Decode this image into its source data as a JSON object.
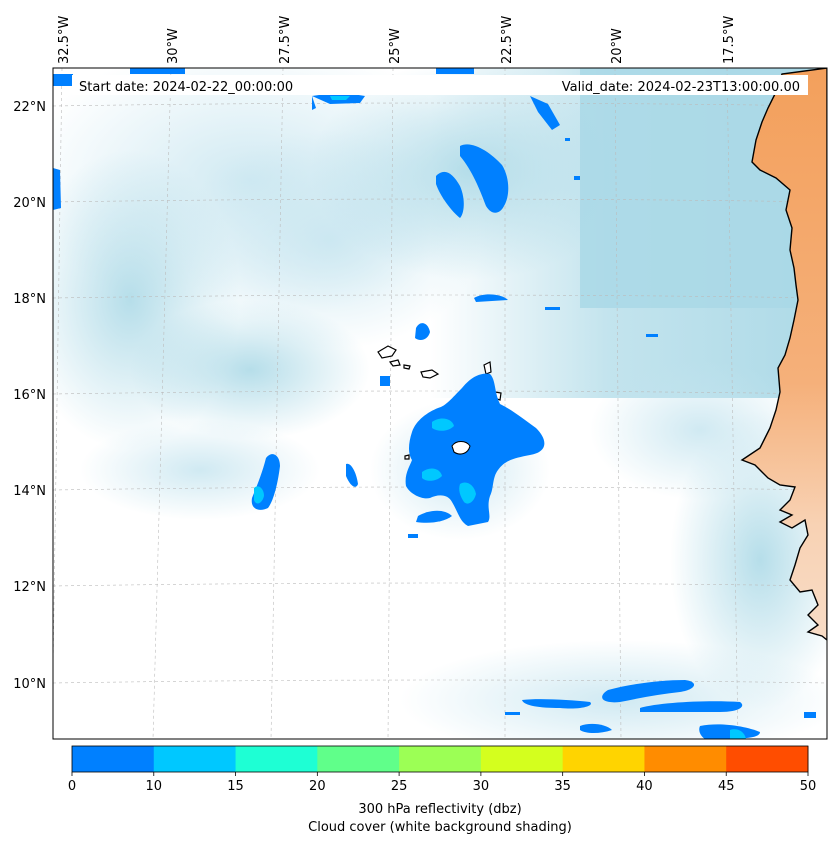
{
  "banner": {
    "start_date": "Start date: 2024-02-22_00:00:00",
    "valid_date": "Valid_date: 2024-02-23T13:00:00.00"
  },
  "map": {
    "lon_ticks": [
      "32.5°W",
      "30°W",
      "27.5°W",
      "25°W",
      "22.5°W",
      "20°W",
      "17.5°W"
    ],
    "lat_ticks": [
      "22°N",
      "20°N",
      "18°N",
      "16°N",
      "14°N",
      "12°N",
      "10°N"
    ],
    "colors": {
      "ocean_cloud": "#a9d8e6",
      "land": "#f3a05c",
      "reflectivity_0_10": "#0080ff"
    }
  },
  "colorbar": {
    "ticks": [
      "0",
      "10",
      "15",
      "20",
      "25",
      "30",
      "35",
      "40",
      "45",
      "50"
    ],
    "colors": [
      "#0080ff",
      "#00c8ff",
      "#1effd4",
      "#60ff8a",
      "#9cff55",
      "#d4ff1e",
      "#ffd400",
      "#ff8c00",
      "#ff4d00"
    ],
    "label_line1": "300 hPa reflectivity (dbz)",
    "label_line2": "Cloud cover (white background shading)"
  }
}
